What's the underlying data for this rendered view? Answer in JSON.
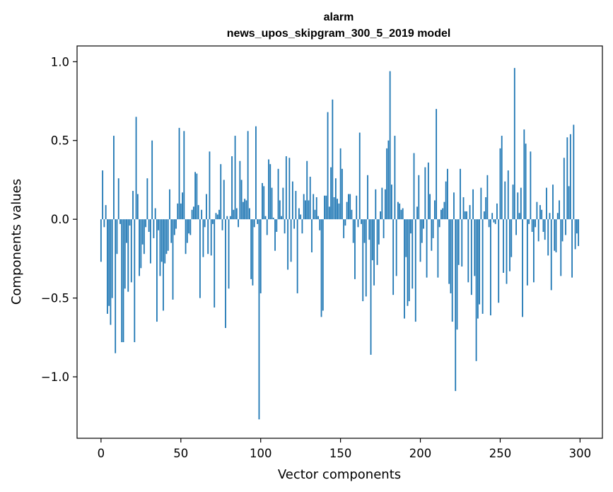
{
  "chart_data": {
    "type": "bar",
    "title": "alarm",
    "subtitle": "news_upos_skipgram_300_5_2019 model",
    "xlabel": "Vector components",
    "ylabel": "Components values",
    "xlim": [
      -15,
      314
    ],
    "ylim": [
      -1.39,
      1.1
    ],
    "xticks": [
      0,
      50,
      100,
      150,
      200,
      250,
      300
    ],
    "xtick_labels": [
      "0",
      "50",
      "100",
      "150",
      "200",
      "250",
      "300"
    ],
    "yticks": [
      1.0,
      0.5,
      0.0,
      -0.5,
      -1.0
    ],
    "ytick_labels": [
      "1.0",
      "0.5",
      "0.0",
      "−0.5",
      "−1.0"
    ],
    "bar_color": "#1f77b4",
    "values": [
      -0.27,
      0.31,
      -0.05,
      0.09,
      -0.6,
      -0.55,
      -0.67,
      -0.5,
      0.53,
      -0.85,
      -0.22,
      0.26,
      -0.03,
      -0.78,
      -0.78,
      -0.44,
      -0.15,
      -0.46,
      -0.04,
      -0.4,
      0.18,
      -0.78,
      0.65,
      0.16,
      -0.36,
      -0.31,
      -0.16,
      -0.22,
      -0.05,
      0.26,
      -0.08,
      -0.28,
      0.5,
      -0.12,
      0.07,
      -0.65,
      -0.07,
      -0.36,
      -0.27,
      -0.58,
      -0.28,
      -0.22,
      -0.2,
      0.19,
      -0.15,
      -0.51,
      -0.1,
      -0.06,
      0.1,
      0.58,
      0.1,
      0.17,
      0.56,
      -0.22,
      -0.15,
      -0.09,
      -0.1,
      0.06,
      0.08,
      0.3,
      0.29,
      0.09,
      -0.5,
      0.06,
      -0.24,
      -0.05,
      0.16,
      -0.22,
      0.43,
      -0.23,
      -0.03,
      -0.56,
      0.04,
      0.03,
      0.06,
      0.35,
      -0.07,
      0.25,
      -0.69,
      0.02,
      -0.44,
      0.02,
      0.4,
      0.06,
      0.53,
      0.07,
      -0.05,
      0.37,
      0.25,
      0.11,
      0.13,
      0.12,
      0.56,
      0.07,
      -0.38,
      -0.42,
      -0.05,
      0.59,
      -0.03,
      -1.27,
      -0.47,
      0.23,
      0.21,
      0.02,
      -0.1,
      0.38,
      0.35,
      0.2,
      0.01,
      -0.2,
      -0.08,
      0.32,
      0.12,
      0.02,
      0.2,
      -0.09,
      0.4,
      -0.32,
      0.39,
      -0.27,
      0.24,
      -0.06,
      0.18,
      -0.47,
      0.07,
      0.03,
      -0.09,
      0.16,
      0.12,
      0.37,
      0.12,
      0.27,
      -0.21,
      0.16,
      0.06,
      0.14,
      0.02,
      -0.07,
      -0.62,
      -0.58,
      0.15,
      0.15,
      0.68,
      0.08,
      0.33,
      0.76,
      0.14,
      0.26,
      0.13,
      0.1,
      0.45,
      0.32,
      -0.12,
      -0.04,
      0.11,
      0.16,
      0.16,
      0.06,
      -0.15,
      -0.38,
      0.15,
      -0.05,
      0.55,
      -0.03,
      -0.52,
      -0.15,
      -0.49,
      0.28,
      -0.13,
      -0.86,
      -0.26,
      -0.42,
      0.19,
      -0.29,
      -0.16,
      0.05,
      0.2,
      -0.12,
      0.19,
      0.45,
      0.5,
      0.94,
      0.22,
      -0.48,
      0.53,
      -0.36,
      0.11,
      0.1,
      0.06,
      0.07,
      -0.63,
      -0.24,
      -0.55,
      -0.52,
      -0.09,
      -0.44,
      0.42,
      -0.65,
      0.08,
      0.28,
      -0.27,
      -0.15,
      -0.06,
      0.33,
      -0.37,
      0.36,
      0.16,
      -0.2,
      -0.12,
      0.12,
      0.7,
      -0.37,
      -0.05,
      0.06,
      0.07,
      0.11,
      0.24,
      0.32,
      -0.41,
      -0.47,
      -0.65,
      0.17,
      -1.09,
      -0.7,
      -0.29,
      0.32,
      -0.3,
      0.14,
      0.05,
      0.05,
      -0.4,
      0.09,
      -0.48,
      0.19,
      -0.36,
      -0.9,
      -0.63,
      -0.54,
      0.2,
      -0.6,
      0.05,
      0.14,
      0.28,
      -0.05,
      -0.61,
      0.04,
      -0.02,
      -0.03,
      0.1,
      -0.53,
      0.45,
      0.53,
      -0.34,
      0.24,
      -0.41,
      0.31,
      -0.33,
      -0.24,
      0.22,
      0.96,
      -0.1,
      0.17,
      0.04,
      0.2,
      -0.62,
      0.57,
      0.48,
      -0.42,
      -0.03,
      0.43,
      -0.08,
      -0.4,
      -0.05,
      0.11,
      -0.14,
      0.09,
      0.06,
      -0.08,
      -0.13,
      0.2,
      -0.23,
      0.04,
      -0.45,
      0.22,
      -0.2,
      -0.21,
      0.04,
      0.12,
      -0.36,
      -0.14,
      0.39,
      -0.1,
      0.52,
      0.21,
      0.54,
      -0.37,
      0.6,
      -0.19,
      -0.09,
      -0.17
    ]
  }
}
